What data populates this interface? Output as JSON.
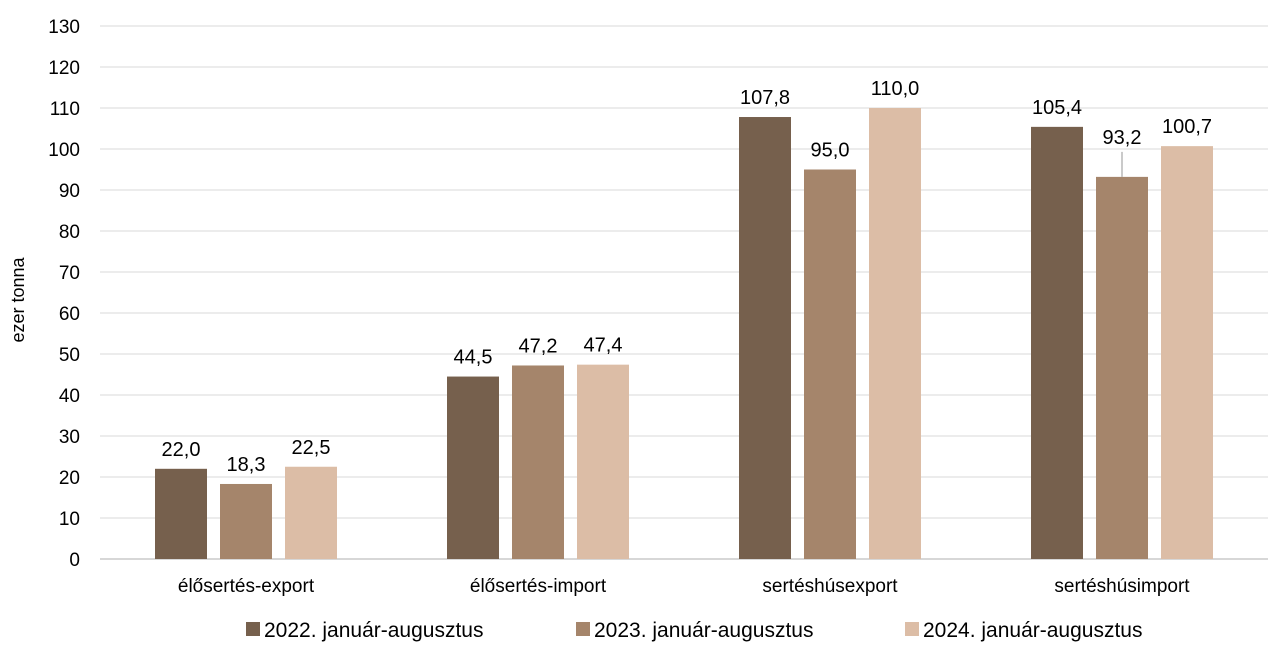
{
  "chart_data": {
    "type": "bar",
    "title": "",
    "xlabel": "",
    "ylabel": "ezer tonna",
    "ylim": [
      0,
      130
    ],
    "yticks": [
      0,
      10,
      20,
      30,
      40,
      50,
      60,
      70,
      80,
      90,
      100,
      110,
      120,
      130
    ],
    "grid": true,
    "legend_position": "bottom",
    "categories": [
      "élősertés-export",
      "élősertés-import",
      "sertéshúsexport",
      "sertéshúsimport"
    ],
    "series": [
      {
        "name": "2022. január-augusztus",
        "color": "#76604d",
        "values": [
          22.0,
          44.5,
          107.8,
          105.4
        ],
        "labels": [
          "22,0",
          "44,5",
          "107,8",
          "105,4"
        ]
      },
      {
        "name": "2023. január-augusztus",
        "color": "#a5856b",
        "values": [
          18.3,
          47.2,
          95.0,
          93.2
        ],
        "labels": [
          "18,3",
          "47,2",
          "95,0",
          "93,2"
        ]
      },
      {
        "name": "2024. január-augusztus",
        "color": "#dcbda6",
        "values": [
          22.5,
          47.4,
          110.0,
          100.7
        ],
        "labels": [
          "22,5",
          "47,4",
          "110,0",
          "100,7"
        ]
      }
    ]
  }
}
